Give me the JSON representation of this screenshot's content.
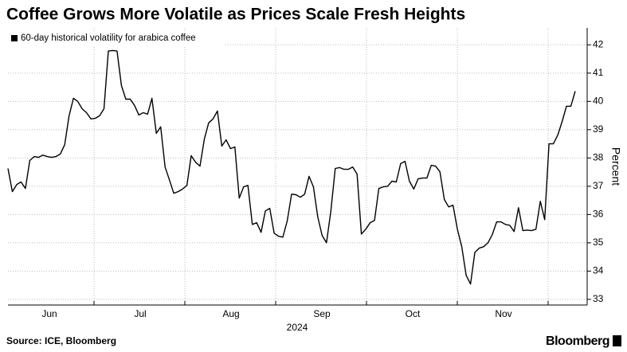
{
  "chart_data": {
    "type": "line",
    "title": "Coffee Grows More Volatile as Prices Scale Fresh Heights",
    "months": [
      "Jun",
      "Jul",
      "Aug",
      "Sep",
      "Oct",
      "Nov"
    ],
    "year": "2024",
    "ylabel": "Percent",
    "ylim": [
      32.8,
      42.6
    ],
    "yticks": [
      33,
      34,
      35,
      36,
      37,
      38,
      39,
      40,
      41,
      42
    ],
    "grid": true,
    "series": [
      {
        "name": "60-day historical volatility for arabica coffee",
        "color": "#000000",
        "values": [
          37.63,
          36.81,
          37.06,
          37.15,
          36.92,
          37.91,
          38.05,
          38.02,
          38.1,
          38.05,
          38.02,
          38.05,
          38.14,
          38.47,
          39.49,
          40.11,
          40.0,
          39.74,
          39.6,
          39.38,
          39.4,
          39.49,
          39.74,
          41.78,
          41.8,
          41.78,
          40.56,
          40.08,
          40.08,
          39.86,
          39.52,
          39.6,
          39.55,
          40.11,
          38.87,
          39.1,
          37.68,
          37.23,
          36.75,
          36.81,
          36.9,
          37.03,
          38.08,
          37.85,
          37.71,
          38.67,
          39.24,
          39.38,
          39.66,
          38.42,
          38.64,
          38.33,
          38.39,
          36.58,
          36.98,
          37.03,
          35.65,
          35.71,
          35.37,
          36.13,
          36.22,
          35.34,
          35.23,
          35.2,
          35.77,
          36.72,
          36.7,
          36.61,
          36.72,
          37.35,
          36.98,
          35.91,
          35.26,
          35.0,
          36.13,
          37.63,
          37.66,
          37.6,
          37.6,
          37.68,
          37.43,
          35.31,
          35.48,
          35.71,
          35.79,
          36.92,
          36.98,
          37.0,
          37.18,
          37.15,
          37.8,
          37.88,
          37.18,
          36.9,
          37.26,
          37.29,
          37.29,
          37.74,
          37.71,
          37.51,
          36.53,
          36.27,
          36.33,
          35.48,
          34.86,
          33.85,
          33.54,
          34.66,
          34.81,
          34.86,
          35.0,
          35.29,
          35.74,
          35.74,
          35.65,
          35.62,
          35.4,
          36.24,
          35.43,
          35.45,
          35.43,
          35.48,
          36.47,
          35.82,
          38.5,
          38.5,
          38.81,
          39.29,
          39.83,
          39.83,
          40.36
        ]
      }
    ],
    "source": "Source: ICE, Bloomberg",
    "brand": "Bloomberg"
  }
}
